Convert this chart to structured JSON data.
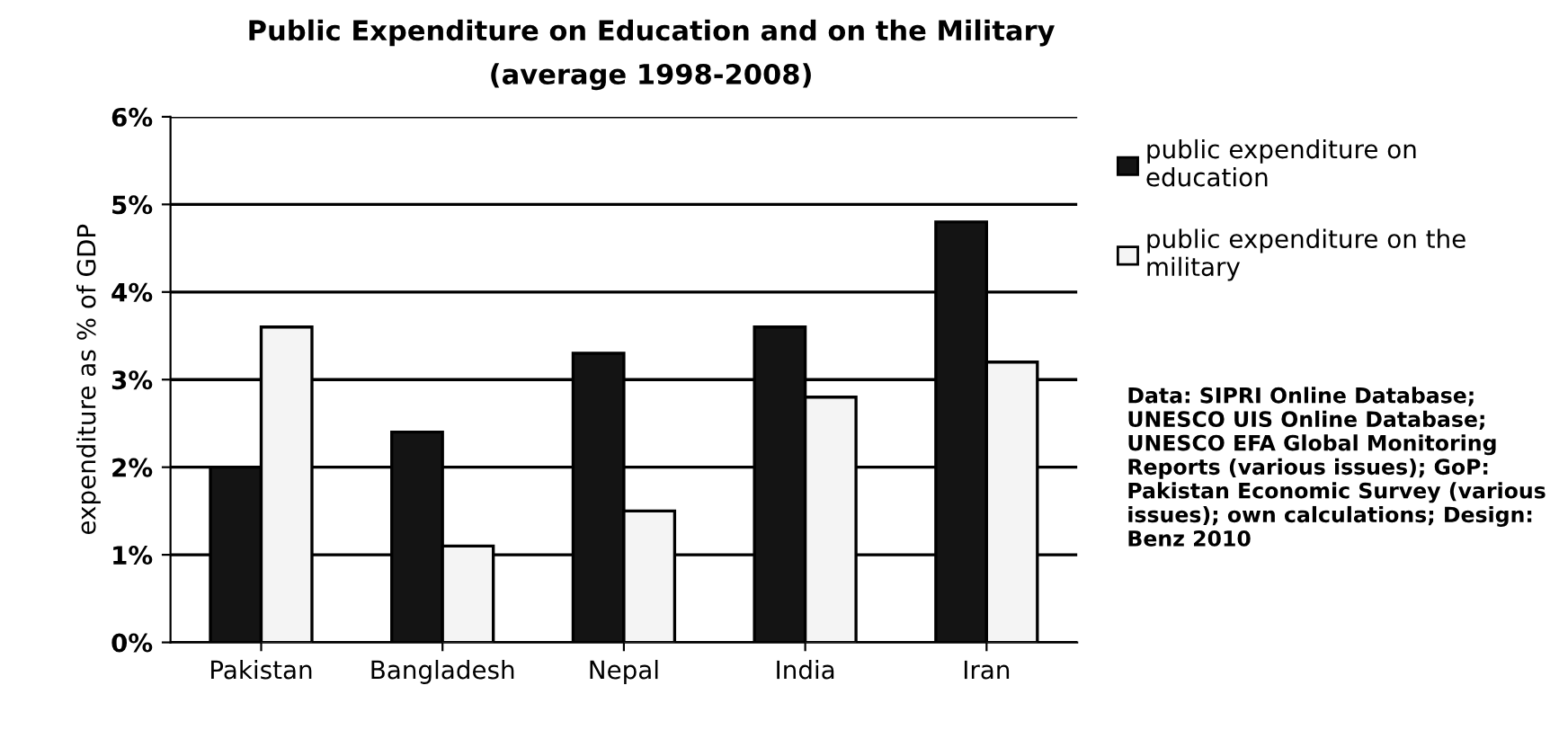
{
  "chart_data": {
    "type": "bar",
    "title": "Public Expenditure on Education and on the Military",
    "subtitle": "(average 1998-2008)",
    "ylabel": "expenditure as % of GDP",
    "categories": [
      "Pakistan",
      "Bangladesh",
      "Nepal",
      "India",
      "Iran"
    ],
    "series": [
      {
        "name": "public expenditure on education",
        "color": "#141414",
        "values": [
          2.0,
          2.4,
          3.3,
          3.6,
          4.8
        ]
      },
      {
        "name": "public expenditure on the military",
        "color": "#f4f4f4",
        "values": [
          3.6,
          1.1,
          1.5,
          2.8,
          3.2
        ]
      }
    ],
    "ylim": [
      0,
      6
    ],
    "yticks": [
      {
        "value": 0,
        "label": "0%"
      },
      {
        "value": 1,
        "label": "1%"
      },
      {
        "value": 2,
        "label": "2%"
      },
      {
        "value": 3,
        "label": "3%"
      },
      {
        "value": 4,
        "label": "4%"
      },
      {
        "value": 5,
        "label": "5%"
      },
      {
        "value": 6,
        "label": "6%"
      }
    ],
    "grid": "y",
    "legend": "right",
    "annotations": [
      "Data: SIPRI Online Database; UNESCO UIS Online Database; UNESCO EFA Global Monitoring Reports (various issues); GoP: Pakistan Economic Survey (various issues); own calculations; Design: Benz 2010"
    ]
  }
}
